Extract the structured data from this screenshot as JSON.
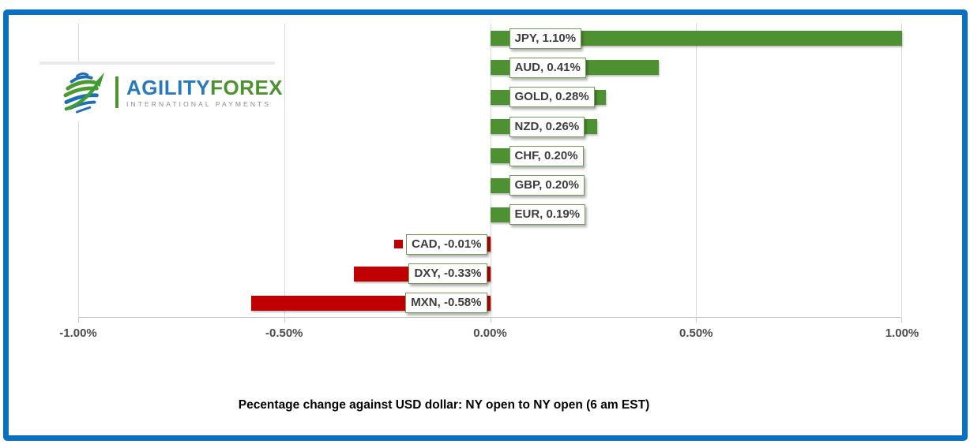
{
  "logo": {
    "brand_part1": "AGILITY",
    "brand_part2": "FOREX",
    "tagline": "INTERNATIONAL PAYMENTS"
  },
  "colors": {
    "frame_blue": "#0a70c2",
    "bar_positive_green": "#4e9132",
    "bar_negative_red": "#c00000",
    "label_border_green": "#709e56",
    "label_text": "#3d3d3d",
    "gridline_gray": "#d9d9d9",
    "tick_text_gray": "#4c4c4c",
    "brand_blue": "#2778bd",
    "brand_green": "#4c9330",
    "tagline_gray": "#8c8c8c"
  },
  "chart_data": {
    "type": "bar",
    "orientation": "horizontal",
    "title": "Pecentage change against USD dollar: NY open to NY open  (6 am EST)",
    "categories": [
      "JPY",
      "AUD",
      "GOLD",
      "NZD",
      "CHF",
      "GBP",
      "EUR",
      "CAD",
      "DXY",
      "MXN"
    ],
    "values": [
      1.1,
      0.41,
      0.28,
      0.26,
      0.2,
      0.2,
      0.19,
      -0.01,
      -0.33,
      -0.58
    ],
    "data_labels": [
      "JPY, 1.10%",
      "AUD, 0.41%",
      "GOLD, 0.28%",
      "NZD, 0.26%",
      "CHF, 0.20%",
      "GBP, 0.20%",
      "EUR, 0.19%",
      "CAD, -0.01%",
      "DXY, -0.33%",
      "MXN, -0.58%"
    ],
    "xlim": [
      -1.0,
      1.0
    ],
    "x_tick_labels": [
      "-1.00%",
      "-0.50%",
      "0.00%",
      "0.50%",
      "1.00%"
    ],
    "x_tick_values": [
      -1.0,
      -0.5,
      0.0,
      0.5,
      1.0
    ],
    "grid": true,
    "legend": "none"
  }
}
